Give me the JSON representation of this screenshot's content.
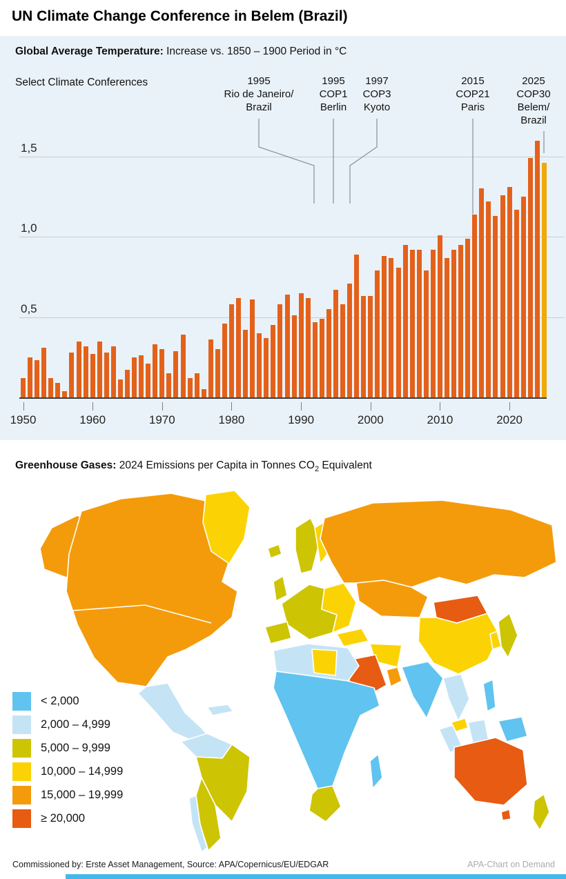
{
  "title": "UN Climate Change Conference in Belem (Brazil)",
  "temperature_section": {
    "heading_bold": "Global Average Temperature:",
    "heading_rest": " Increase vs. 1850 – 1900 Period in °C",
    "annotation_title": "Select Climate Conferences",
    "conferences": [
      {
        "lines": [
          "1995",
          "Rio de Janeiro/",
          "Brazil"
        ]
      },
      {
        "lines": [
          "1995",
          "COP1",
          "Berlin"
        ]
      },
      {
        "lines": [
          "1997",
          "COP3",
          "Kyoto"
        ]
      },
      {
        "lines": [
          "2015",
          "COP21",
          "Paris"
        ]
      },
      {
        "lines": [
          "2025",
          "COP30",
          "Belem/",
          "Brazil"
        ]
      }
    ]
  },
  "chart_data": {
    "type": "bar",
    "title": "Global Average Temperature: Increase vs. 1850 – 1900 Period in °C",
    "x_start": 1950,
    "x_step": 1,
    "values": [
      0.12,
      0.25,
      0.23,
      0.31,
      0.12,
      0.09,
      0.04,
      0.28,
      0.35,
      0.32,
      0.27,
      0.35,
      0.28,
      0.32,
      0.11,
      0.17,
      0.25,
      0.26,
      0.21,
      0.33,
      0.3,
      0.15,
      0.29,
      0.39,
      0.12,
      0.15,
      0.05,
      0.36,
      0.3,
      0.46,
      0.58,
      0.62,
      0.42,
      0.61,
      0.4,
      0.37,
      0.45,
      0.58,
      0.64,
      0.51,
      0.65,
      0.62,
      0.47,
      0.49,
      0.55,
      0.67,
      0.58,
      0.71,
      0.89,
      0.63,
      0.63,
      0.79,
      0.88,
      0.87,
      0.81,
      0.95,
      0.92,
      0.92,
      0.79,
      0.92,
      1.01,
      0.87,
      0.92,
      0.95,
      0.99,
      1.14,
      1.3,
      1.22,
      1.13,
      1.26,
      1.31,
      1.17,
      1.25,
      1.49,
      1.6,
      1.46
    ],
    "ylim": [
      0,
      1.65
    ],
    "gridlines": [
      {
        "value": 1.5,
        "label": "1,5"
      },
      {
        "value": 1.0,
        "label": "1,0"
      },
      {
        "value": 0.5,
        "label": "0,5"
      }
    ],
    "x_tick_labels": [
      "1950",
      "1960",
      "1970",
      "1980",
      "1990",
      "2000",
      "2010",
      "2020"
    ],
    "bar_color": "#E3611A",
    "highlight_year": 2025,
    "highlight_color": "#F0A90B",
    "legend_position": "none"
  },
  "map_section": {
    "heading_bold": "Greenhouse Gases:",
    "heading_rest_pre": " 2024 Emissions per Capita in Tonnes CO",
    "heading_sub": "2",
    "heading_rest_post": " Equivalent",
    "legend": [
      {
        "label": "< 2,000",
        "color": "#61C3EF"
      },
      {
        "label": "2,000 – 4,999",
        "color": "#C4E4F6"
      },
      {
        "label": "5,000 – 9,999",
        "color": "#CDC404"
      },
      {
        "label": "10,000 – 14,999",
        "color": "#FBD304"
      },
      {
        "label": "15,000 – 19,999",
        "color": "#F49B0B"
      },
      {
        "label": "≥ 20,000",
        "color": "#E75B12"
      }
    ],
    "regions": [
      {
        "id": "alaska",
        "category": "15,000 – 19,999"
      },
      {
        "id": "canada-usa",
        "category": "15,000 – 19,999"
      },
      {
        "id": "greenland",
        "category": "10,000 – 14,999"
      },
      {
        "id": "iceland",
        "category": "5,000 – 9,999"
      },
      {
        "id": "mexico-central-america",
        "category": "2,000 – 4,999"
      },
      {
        "id": "caribbean",
        "category": "2,000 – 4,999"
      },
      {
        "id": "south-america-northwest",
        "category": "2,000 – 4,999"
      },
      {
        "id": "brazil",
        "category": "5,000 – 9,999"
      },
      {
        "id": "southern-south-america",
        "category": "5,000 – 9,999"
      },
      {
        "id": "chile-coast",
        "category": "2,000 – 4,999"
      },
      {
        "id": "western-europe",
        "category": "5,000 – 9,999"
      },
      {
        "id": "eastern-europe",
        "category": "10,000 – 14,999"
      },
      {
        "id": "scandinavia",
        "category": "5,000 – 9,999"
      },
      {
        "id": "finland",
        "category": "10,000 – 14,999"
      },
      {
        "id": "united-kingdom",
        "category": "5,000 – 9,999"
      },
      {
        "id": "iberia",
        "category": "5,000 – 9,999"
      },
      {
        "id": "russia",
        "category": "15,000 – 19,999"
      },
      {
        "id": "kazakhstan",
        "category": "15,000 – 19,999"
      },
      {
        "id": "mongolia",
        "category": "≥ 20,000"
      },
      {
        "id": "china",
        "category": "10,000 – 14,999"
      },
      {
        "id": "turkey",
        "category": "10,000 – 14,999"
      },
      {
        "id": "iran",
        "category": "10,000 – 14,999"
      },
      {
        "id": "saudi-arabia",
        "category": "≥ 20,000"
      },
      {
        "id": "gulf-states",
        "category": "15,000 – 19,999"
      },
      {
        "id": "india",
        "category": "< 2,000"
      },
      {
        "id": "indochina",
        "category": "2,000 – 4,999"
      },
      {
        "id": "malaysia",
        "category": "10,000 – 14,999"
      },
      {
        "id": "sumatra",
        "category": "2,000 – 4,999"
      },
      {
        "id": "borneo",
        "category": "2,000 – 4,999"
      },
      {
        "id": "java",
        "category": "2,000 – 4,999"
      },
      {
        "id": "philippines",
        "category": "< 2,000"
      },
      {
        "id": "new-guinea",
        "category": "< 2,000"
      },
      {
        "id": "japan",
        "category": "5,000 – 9,999"
      },
      {
        "id": "korea",
        "category": "10,000 – 14,999"
      },
      {
        "id": "north-africa",
        "category": "2,000 – 4,999"
      },
      {
        "id": "libya",
        "category": "10,000 – 14,999"
      },
      {
        "id": "sub-saharan-africa",
        "category": "< 2,000"
      },
      {
        "id": "south-africa",
        "category": "5,000 – 9,999"
      },
      {
        "id": "madagascar",
        "category": "< 2,000"
      },
      {
        "id": "australia",
        "category": "≥ 20,000"
      },
      {
        "id": "tasmania",
        "category": "≥ 20,000"
      },
      {
        "id": "new-zealand",
        "category": "5,000 – 9,999"
      }
    ]
  },
  "footer": {
    "left": "Commissioned by: Erste Asset Management, Source: APA/Copernicus/EU/EDGAR",
    "right": "APA-Chart on Demand"
  }
}
